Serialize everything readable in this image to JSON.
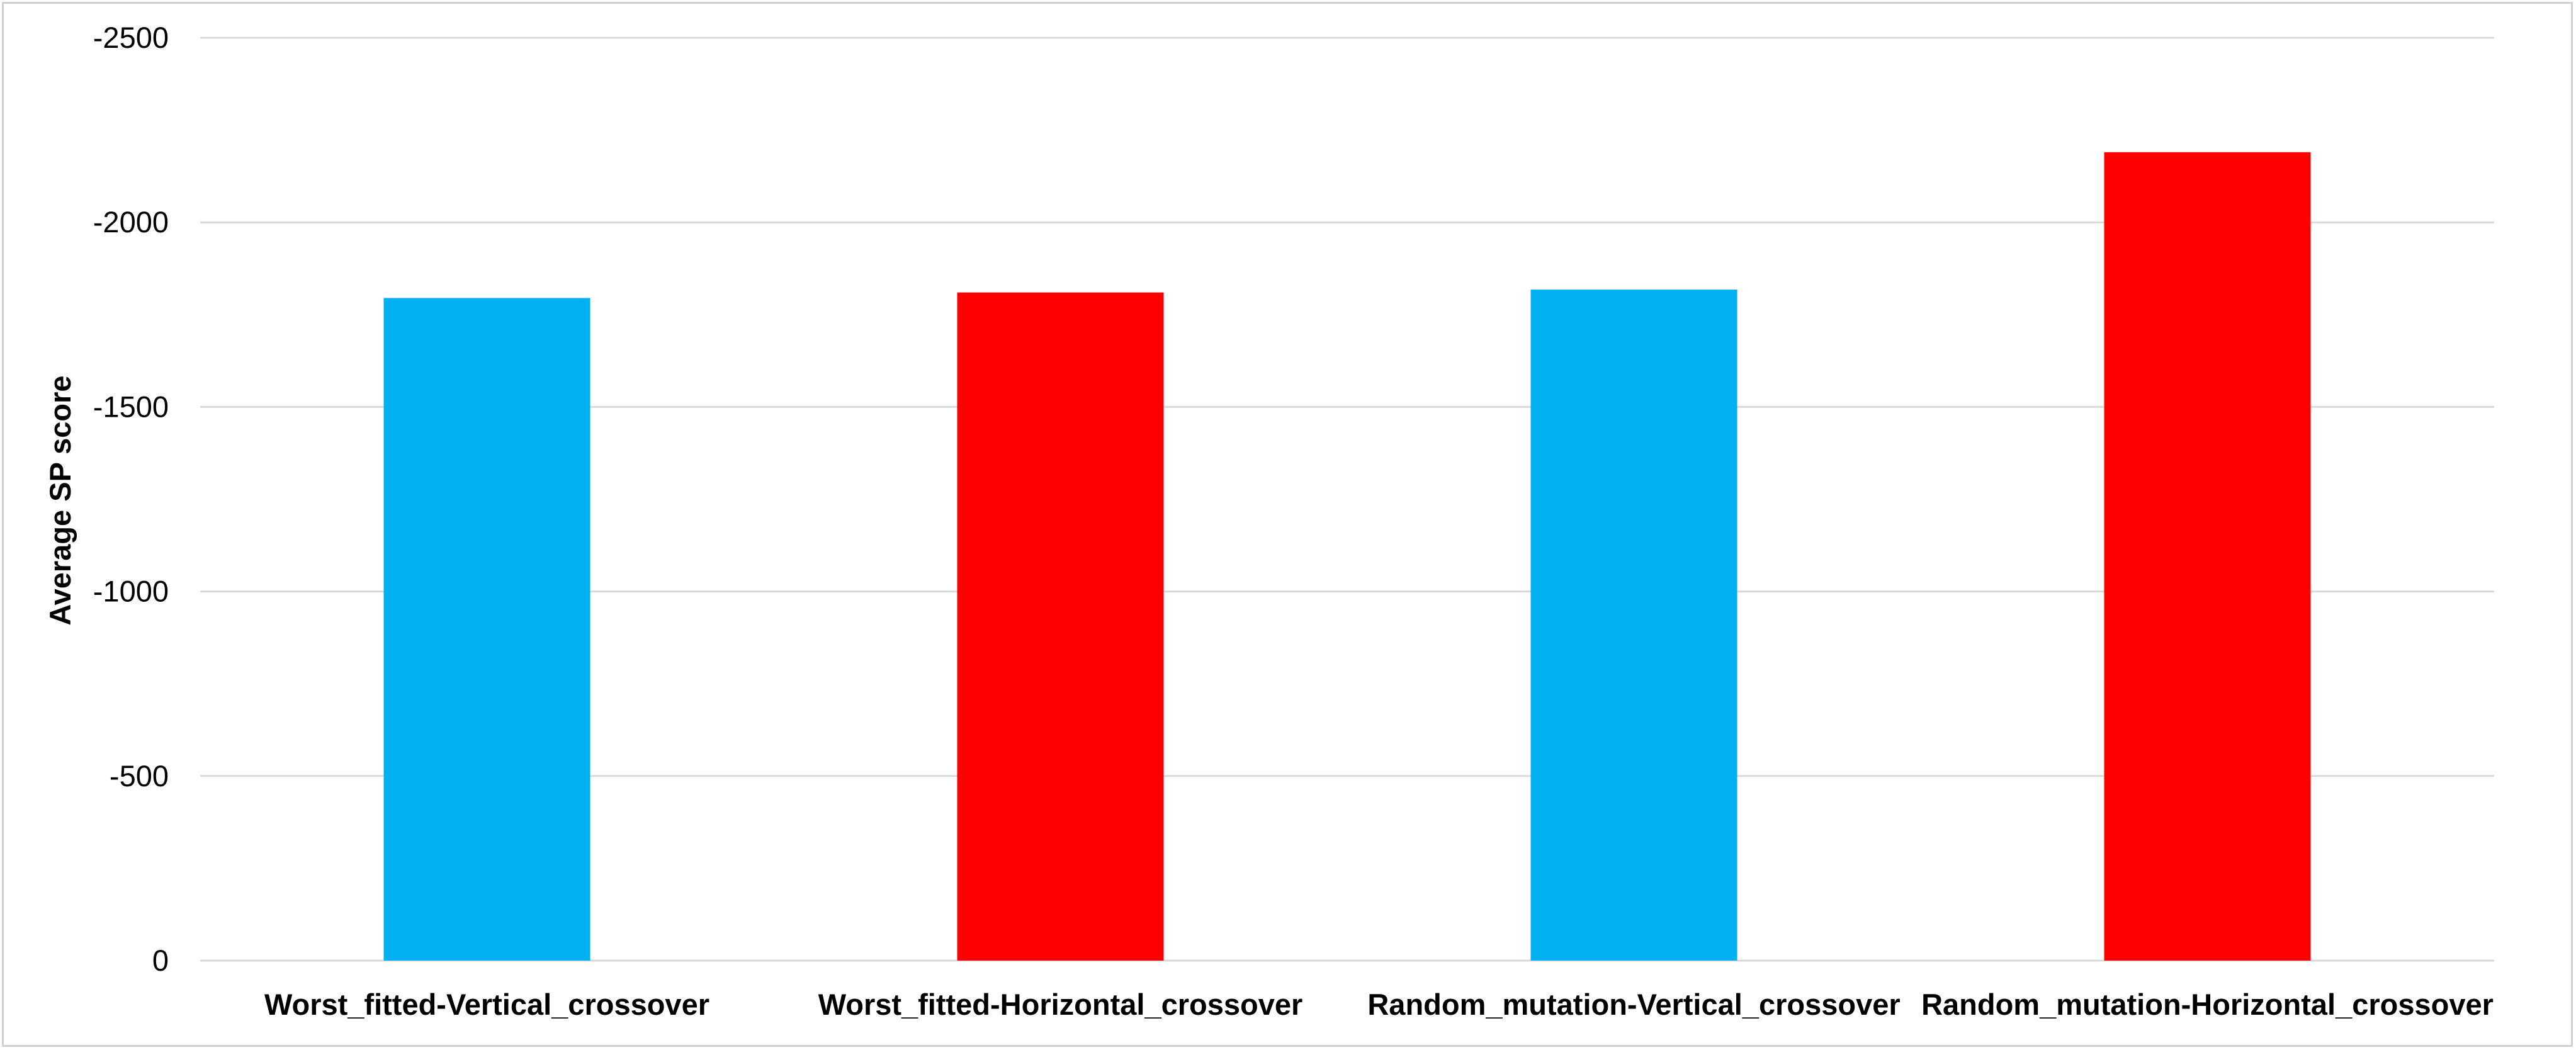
{
  "chart_data": {
    "type": "bar",
    "title": "",
    "xlabel": "",
    "ylabel": "Average SP score",
    "categories": [
      "Worst_fitted-Vertical_crossover",
      "Worst_fitted-Horizontal_crossover",
      "Random_mutation-Vertical_crossover",
      "Random_mutation-Horizontal_crossover"
    ],
    "values": [
      -1795,
      -1810,
      -1818,
      -2190
    ],
    "bar_colors": [
      "#00b0f0",
      "#ff0000",
      "#00b0f0",
      "#ff0000"
    ],
    "ylim": [
      0,
      -2500
    ],
    "y_ticks": [
      0,
      -500,
      -1000,
      -1500,
      -2000,
      -2500
    ],
    "y_tick_labels": [
      "0",
      "-500",
      "-1000",
      "-1500",
      "-2000",
      "-2500"
    ],
    "grid": true,
    "legend": "none"
  }
}
